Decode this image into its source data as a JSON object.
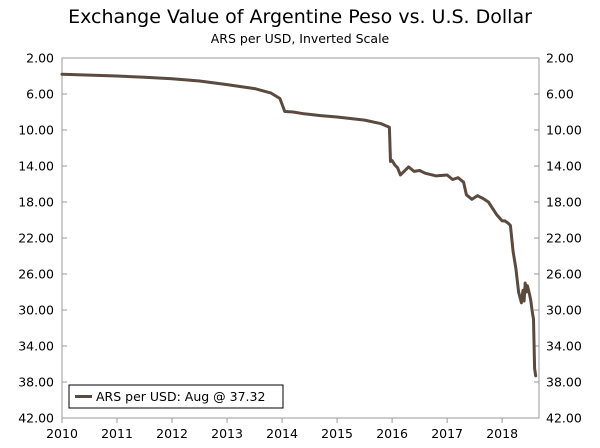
{
  "chart_data": {
    "type": "line",
    "title": "Exchange Value of Argentine Peso vs. U.S. Dollar",
    "subtitle": "ARS per USD, Inverted Scale",
    "xlabel": "",
    "ylabel": "",
    "xlim": [
      2010,
      2018.67
    ],
    "ylim": [
      2,
      42
    ],
    "y_inverted": true,
    "x_ticks": [
      "2010",
      "2011",
      "2012",
      "2013",
      "2014",
      "2015",
      "2016",
      "2017",
      "2018"
    ],
    "x_tick_values": [
      2010,
      2011,
      2012,
      2013,
      2014,
      2015,
      2016,
      2017,
      2018
    ],
    "y_ticks": [
      "2.00",
      "6.00",
      "10.00",
      "14.00",
      "18.00",
      "22.00",
      "26.00",
      "30.00",
      "34.00",
      "38.00",
      "42.00"
    ],
    "y_tick_values": [
      2,
      6,
      10,
      14,
      18,
      22,
      26,
      30,
      34,
      38,
      42
    ],
    "grid": false,
    "legend_position": "bottom-left",
    "series": [
      {
        "name": "ARS per USD",
        "legend_label": "ARS per USD: Aug @ 37.32",
        "color": "#5a4a3f",
        "x": [
          2010.0,
          2010.5,
          2011.0,
          2011.5,
          2012.0,
          2012.5,
          2013.0,
          2013.5,
          2013.8,
          2013.96,
          2014.05,
          2014.2,
          2014.4,
          2014.7,
          2015.0,
          2015.5,
          2015.8,
          2015.95,
          2015.97,
          2016.0,
          2016.05,
          2016.1,
          2016.15,
          2016.2,
          2016.3,
          2016.4,
          2016.5,
          2016.6,
          2016.8,
          2017.0,
          2017.1,
          2017.2,
          2017.3,
          2017.35,
          2017.45,
          2017.55,
          2017.65,
          2017.75,
          2017.9,
          2018.0,
          2018.05,
          2018.1,
          2018.15,
          2018.2,
          2018.25,
          2018.3,
          2018.35,
          2018.38,
          2018.4,
          2018.42,
          2018.44,
          2018.46,
          2018.5,
          2018.52,
          2018.55,
          2018.57,
          2018.59,
          2018.61
        ],
        "values": [
          3.8,
          3.9,
          4.0,
          4.15,
          4.3,
          4.55,
          4.95,
          5.4,
          5.9,
          6.5,
          7.95,
          8.0,
          8.2,
          8.4,
          8.55,
          8.9,
          9.3,
          9.7,
          13.5,
          13.4,
          13.9,
          14.2,
          15.0,
          14.7,
          14.1,
          14.6,
          14.5,
          14.8,
          15.1,
          15.0,
          15.5,
          15.3,
          15.8,
          17.2,
          17.7,
          17.3,
          17.6,
          18.0,
          19.4,
          20.1,
          20.1,
          20.3,
          20.6,
          23.5,
          25.4,
          28.0,
          29.2,
          27.8,
          29.0,
          27.0,
          28.0,
          27.3,
          28.3,
          28.9,
          30.3,
          31.0,
          36.5,
          37.32
        ]
      }
    ]
  }
}
